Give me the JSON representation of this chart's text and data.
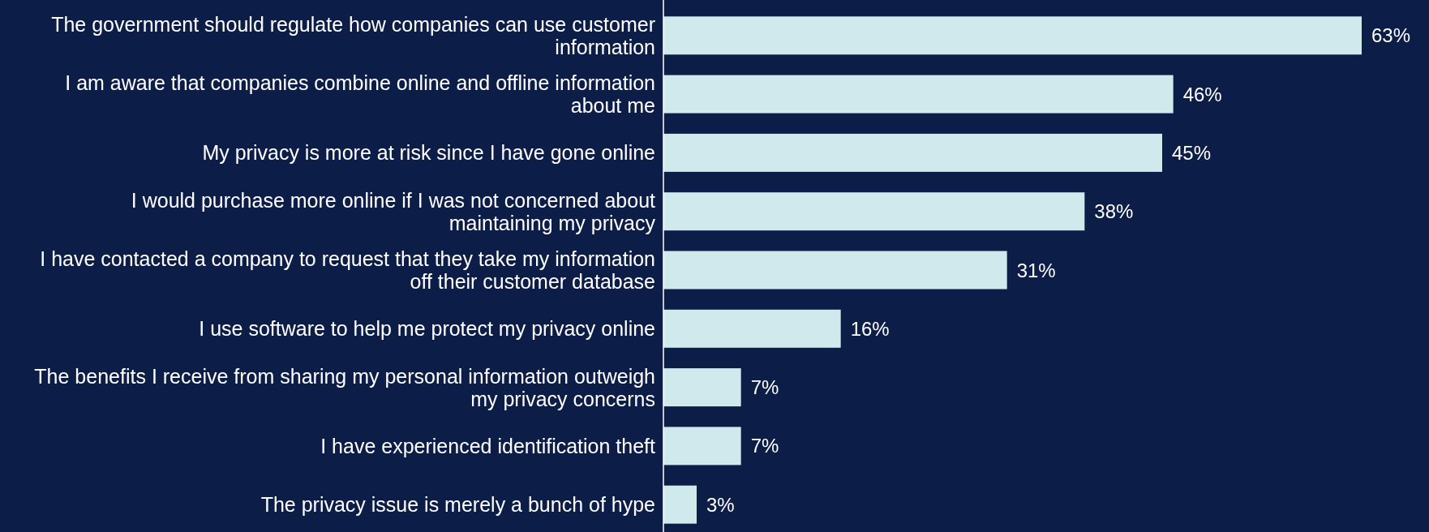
{
  "chart_data": {
    "type": "bar",
    "orientation": "horizontal",
    "categories": [
      "The government should regulate how companies can use customer information",
      "I am aware that companies combine online and offline information about me",
      "My privacy is more at risk since I have gone online",
      "I would purchase more online if I was not concerned about maintaining my privacy",
      "I have contacted a company to request that they take my information off their customer database",
      "I use software to help me protect my privacy online",
      "The benefits I receive from sharing my personal information outweigh my privacy concerns",
      "I have experienced identification theft",
      "The privacy issue is merely a bunch of hype"
    ],
    "values": [
      63,
      46,
      45,
      38,
      31,
      16,
      7,
      7,
      3
    ],
    "value_labels": [
      "63%",
      "46%",
      "45%",
      "38%",
      "31%",
      "16%",
      "7%",
      "7%",
      "3%"
    ],
    "color": "#cfe9ec"
  }
}
